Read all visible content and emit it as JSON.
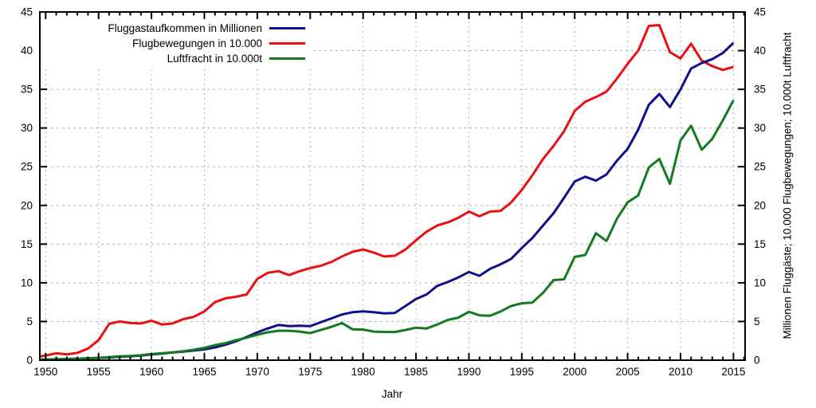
{
  "chart_data": {
    "type": "line",
    "title": "",
    "xlabel": "Jahr",
    "ylabel_right": "Millionen Fluggäste; 10.000 Flugbewegungen; 10.000t Luftfracht",
    "x_range": [
      1949.45,
      2016.1
    ],
    "y_range": [
      0,
      45
    ],
    "x_major_ticks": [
      1950,
      1955,
      1960,
      1965,
      1970,
      1975,
      1980,
      1985,
      1990,
      1995,
      2000,
      2005,
      2010,
      2015
    ],
    "x_minor_step": 1,
    "y_major_ticks": [
      0,
      5,
      10,
      15,
      20,
      25,
      30,
      35,
      40,
      45
    ],
    "grid": true,
    "legend_position": "top-left-inside-opaque",
    "axis_color": "#000000",
    "grid_color": "#b2b2b2",
    "text_color": "#000000",
    "x": [
      1949,
      1950,
      1951,
      1952,
      1953,
      1954,
      1955,
      1956,
      1957,
      1958,
      1959,
      1960,
      1961,
      1962,
      1963,
      1964,
      1965,
      1966,
      1967,
      1968,
      1969,
      1970,
      1971,
      1972,
      1973,
      1974,
      1975,
      1976,
      1977,
      1978,
      1979,
      1980,
      1981,
      1982,
      1983,
      1984,
      1985,
      1986,
      1987,
      1988,
      1989,
      1990,
      1991,
      1992,
      1993,
      1994,
      1995,
      1996,
      1997,
      1998,
      1999,
      2000,
      2001,
      2002,
      2003,
      2004,
      2005,
      2006,
      2007,
      2008,
      2009,
      2010,
      2011,
      2012,
      2013,
      2014,
      2015
    ],
    "series": [
      {
        "name": "Fluggastaufkommen in Millionen",
        "color": "#10108c",
        "values": [
          0.05,
          0.1,
          0.1,
          0.15,
          0.2,
          0.25,
          0.3,
          0.35,
          0.45,
          0.5,
          0.6,
          0.75,
          0.85,
          1.0,
          1.1,
          1.25,
          1.4,
          1.65,
          2.0,
          2.45,
          3.0,
          3.6,
          4.1,
          4.55,
          4.4,
          4.45,
          4.4,
          4.9,
          5.4,
          5.9,
          6.2,
          6.3,
          6.2,
          6.05,
          6.1,
          7.0,
          7.9,
          8.5,
          9.6,
          10.1,
          10.7,
          11.4,
          10.9,
          11.8,
          12.4,
          13.1,
          14.5,
          15.8,
          17.4,
          19.0,
          21.0,
          23.1,
          23.7,
          23.2,
          24.0,
          25.8,
          27.3,
          29.8,
          33.0,
          34.4,
          32.7,
          35.0,
          37.7,
          38.4,
          38.9,
          39.7,
          41.0
        ]
      },
      {
        "name": "Flugbewegungen in 10.000",
        "color": "#e81010",
        "values": [
          0.4,
          0.6,
          0.9,
          0.75,
          0.95,
          1.5,
          2.6,
          4.7,
          5.0,
          4.8,
          4.75,
          5.1,
          4.6,
          4.75,
          5.3,
          5.6,
          6.3,
          7.5,
          8.0,
          8.2,
          8.5,
          10.5,
          11.3,
          11.5,
          11.0,
          11.5,
          11.9,
          12.2,
          12.7,
          13.4,
          14.0,
          14.3,
          13.9,
          13.4,
          13.5,
          14.3,
          15.5,
          16.6,
          17.4,
          17.8,
          18.4,
          19.2,
          18.6,
          19.2,
          19.3,
          20.4,
          22.0,
          23.9,
          26.0,
          27.7,
          29.6,
          32.2,
          33.4,
          34.0,
          34.7,
          36.4,
          38.3,
          40.0,
          43.2,
          43.3,
          39.8,
          39.0,
          40.9,
          38.7,
          38.0,
          37.5,
          37.9
        ]
      },
      {
        "name": "Luftfracht in 10.000t",
        "color": "#147a20",
        "values": [
          0.05,
          0.1,
          0.12,
          0.15,
          0.2,
          0.25,
          0.3,
          0.4,
          0.5,
          0.55,
          0.65,
          0.8,
          0.9,
          1.0,
          1.15,
          1.35,
          1.6,
          1.95,
          2.2,
          2.6,
          2.9,
          3.3,
          3.6,
          3.8,
          3.8,
          3.7,
          3.5,
          3.9,
          4.3,
          4.8,
          4.0,
          3.95,
          3.7,
          3.65,
          3.65,
          3.9,
          4.2,
          4.1,
          4.6,
          5.2,
          5.5,
          6.25,
          5.8,
          5.75,
          6.3,
          7.0,
          7.35,
          7.45,
          8.7,
          10.35,
          10.45,
          13.35,
          13.6,
          16.4,
          15.4,
          18.3,
          20.4,
          21.3,
          24.9,
          26.0,
          22.8,
          28.4,
          30.3,
          27.2,
          28.6,
          31.0,
          33.6
        ]
      }
    ],
    "draw_order": [
      1,
      0,
      2
    ]
  }
}
